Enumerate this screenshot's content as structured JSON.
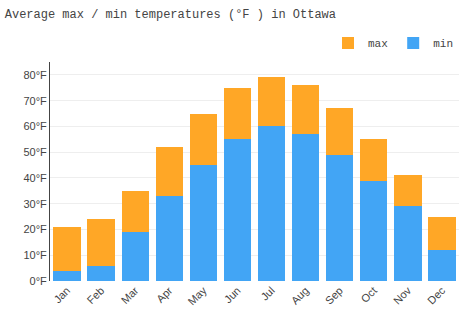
{
  "chart_data": {
    "type": "bar",
    "title": "Average max / min temperatures (°F ) in Ottawa",
    "categories": [
      "Jan",
      "Feb",
      "Mar",
      "Apr",
      "May",
      "Jun",
      "Jul",
      "Aug",
      "Sep",
      "Oct",
      "Nov",
      "Dec"
    ],
    "series": [
      {
        "name": "min",
        "color": "#42a5f5",
        "values": [
          4,
          6,
          19,
          33,
          45,
          55,
          60,
          57,
          49,
          39,
          29,
          12
        ]
      },
      {
        "name": "max",
        "color": "#ffa726",
        "values": [
          17,
          18,
          16,
          19,
          20,
          20,
          19,
          19,
          18,
          16,
          12,
          13
        ]
      }
    ],
    "stacked": true,
    "ylim": [
      0,
      85
    ],
    "yticks": [
      {
        "value": 0,
        "label": "0°F"
      },
      {
        "value": 10,
        "label": "10°F"
      },
      {
        "value": 20,
        "label": "20°F"
      },
      {
        "value": 30,
        "label": "30°F"
      },
      {
        "value": 40,
        "label": "40°F"
      },
      {
        "value": 50,
        "label": "50°F"
      },
      {
        "value": 60,
        "label": "60°F"
      },
      {
        "value": 70,
        "label": "70°F"
      },
      {
        "value": 80,
        "label": "80°F"
      }
    ],
    "grid": true,
    "legend": "upper right"
  }
}
